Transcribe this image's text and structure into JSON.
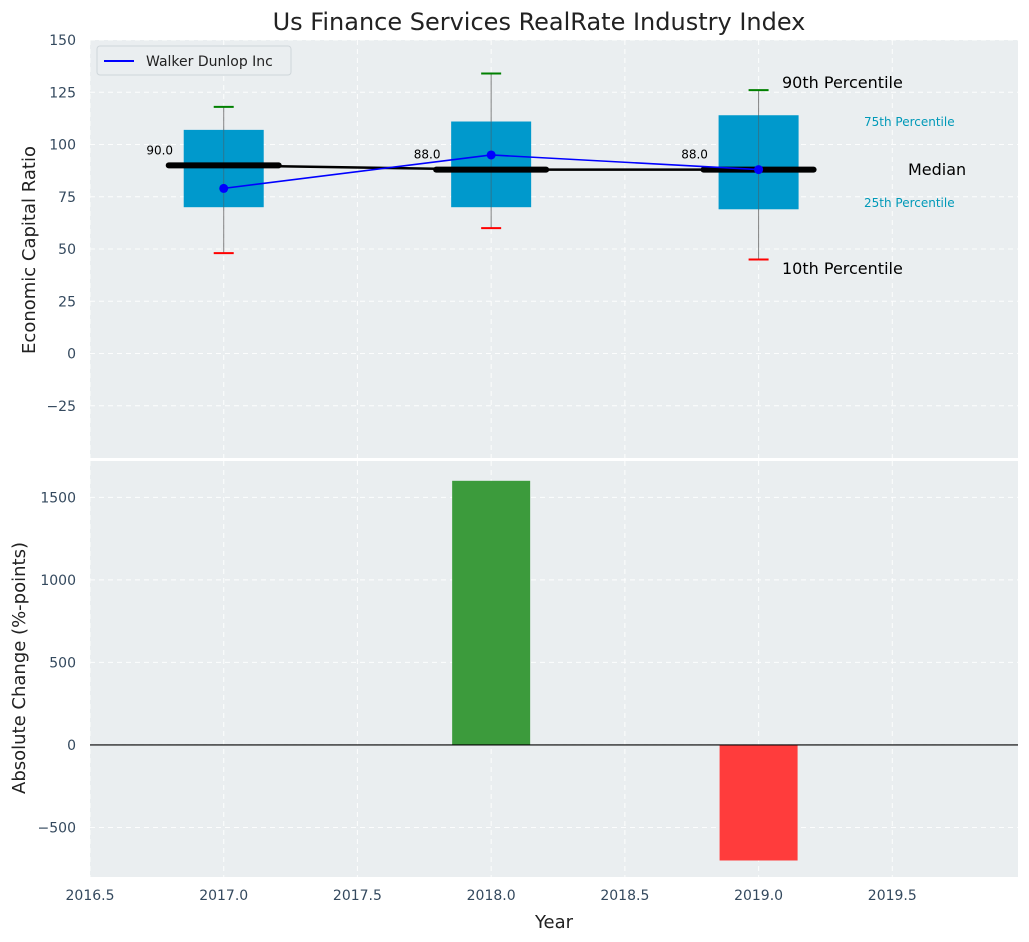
{
  "title": "Us Finance Services RealRate Industry Index",
  "colors": {
    "panel_bg": "#eaeef0",
    "box": "#0099cc",
    "company_line": "#0000ff",
    "median": "#000000",
    "p90_cap": "#008000",
    "p10_cap": "#ff0000",
    "bar_positive": "#3c9b3c",
    "bar_negative": "#ff3c3c",
    "pct_label": "#0099b8"
  },
  "chart_data": [
    {
      "type": "box",
      "ylabel": "Economic Capital Ratio",
      "ylim": [
        -50,
        150
      ],
      "yticks": [
        -25,
        0,
        25,
        50,
        75,
        100,
        125,
        150
      ],
      "ytick_labels": [
        "−25",
        "0",
        "25",
        "50",
        "75",
        "100",
        "125",
        "150"
      ],
      "x": [
        2017,
        2018,
        2019
      ],
      "p10": [
        48,
        60,
        45
      ],
      "p25": [
        70,
        70,
        69
      ],
      "median": [
        90,
        88,
        88
      ],
      "p75": [
        107,
        111,
        114
      ],
      "p90": [
        118,
        134,
        126
      ],
      "median_labels": [
        "90.0",
        "88.0",
        "88.0"
      ],
      "series": [
        {
          "name": "Walker Dunlop Inc",
          "values": [
            79,
            95,
            88
          ]
        }
      ],
      "legend": {
        "label": "Walker Dunlop Inc",
        "position": "upper-left"
      },
      "annotations": {
        "p90": "90th Percentile",
        "p75": "75th Percentile",
        "median": "Median",
        "p25": "25th Percentile",
        "p10": "10th Percentile"
      },
      "grid": true
    },
    {
      "type": "bar",
      "ylabel": "Absolute Change (%-points)",
      "xlabel": "Year",
      "ylim": [
        -800,
        1720
      ],
      "yticks": [
        -500,
        0,
        500,
        1000,
        1500
      ],
      "ytick_labels": [
        "−500",
        "0",
        "500",
        "1000",
        "1500"
      ],
      "xlim": [
        2016.5,
        2019.97
      ],
      "xticks": [
        2016.5,
        2017.0,
        2017.5,
        2018.0,
        2018.5,
        2019.0,
        2019.5
      ],
      "xtick_labels": [
        "2016.5",
        "2017.0",
        "2017.5",
        "2018.0",
        "2018.5",
        "2019.0",
        "2019.5"
      ],
      "x": [
        2018,
        2019
      ],
      "values": [
        1600,
        -700
      ],
      "grid": true
    }
  ]
}
